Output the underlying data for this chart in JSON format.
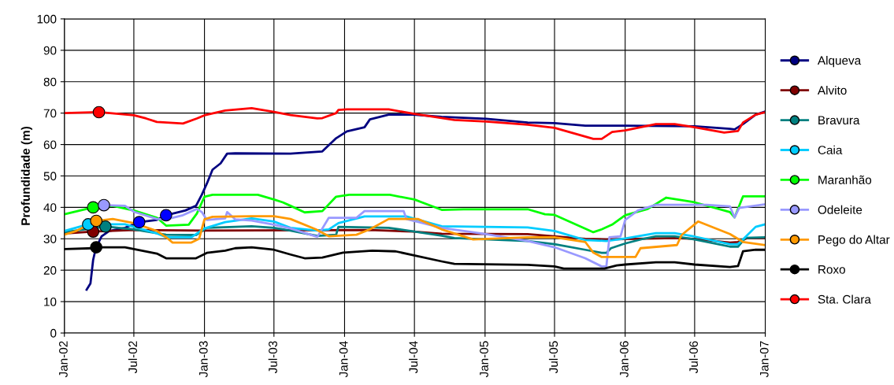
{
  "chart_data": {
    "type": "line",
    "ylabel": "Profundidade (m)",
    "ylim": [
      0,
      100
    ],
    "yticks": [
      0,
      10,
      20,
      30,
      40,
      50,
      60,
      70,
      80,
      90,
      100
    ],
    "xlim": [
      "2002-01-01",
      "2007-01-01"
    ],
    "xticks": [
      {
        "value": "2002-01-01",
        "label": "Jan-02"
      },
      {
        "value": "2002-07-01",
        "label": "Jul-02"
      },
      {
        "value": "2003-01-01",
        "label": "Jan-03"
      },
      {
        "value": "2003-07-01",
        "label": "Jul-03"
      },
      {
        "value": "2004-01-01",
        "label": "Jan-04"
      },
      {
        "value": "2004-07-01",
        "label": "Jul-04"
      },
      {
        "value": "2005-01-01",
        "label": "Jan-05"
      },
      {
        "value": "2005-07-01",
        "label": "Jul-05"
      },
      {
        "value": "2006-01-01",
        "label": "Jan-06"
      },
      {
        "value": "2006-07-01",
        "label": "Jul-06"
      },
      {
        "value": "2007-01-01",
        "label": "Jan-07"
      }
    ],
    "grid": true,
    "legend": "right",
    "marker": "none",
    "line_style": "solid",
    "series": [
      {
        "name": "Alqueva",
        "color": "#000080",
        "x": [
          "2002-02-28",
          "2002-03-10",
          "2002-03-17",
          "2002-03-24",
          "2002-04-08",
          "2002-04-28",
          "2002-06-08",
          "2002-07-15",
          "2002-08-30",
          "2002-09-23",
          "2002-11-12",
          "2002-12-10",
          "2002-12-25",
          "2003-01-07",
          "2003-01-22",
          "2003-02-12",
          "2003-03-01",
          "2003-03-22",
          "2003-08-13",
          "2003-11-04",
          "2003-12-10",
          "2004-01-07",
          "2004-02-22",
          "2004-03-07",
          "2004-04-25",
          "2004-06-28",
          "2004-09-10",
          "2005-01-04",
          "2005-04-22",
          "2005-07-01",
          "2005-09-19",
          "2006-01-01",
          "2006-07-01",
          "2006-10-01",
          "2006-10-13",
          "2006-11-04",
          "2006-12-07",
          "2007-01-01"
        ],
        "values": [
          13.8,
          15.8,
          23.3,
          27,
          30.8,
          32.5,
          33.5,
          35.3,
          36,
          37.5,
          39,
          40.5,
          44,
          47.5,
          52,
          54,
          57.1,
          57.2,
          57.1,
          57.8,
          62,
          64.2,
          65.5,
          68,
          69.5,
          69.5,
          68.8,
          68.2,
          67,
          66.8,
          66,
          66,
          65.8,
          65,
          64.8,
          66.5,
          69.5,
          70.5
        ]
      },
      {
        "name": "Alvito",
        "color": "#800000",
        "x": [
          "2002-01-01",
          "2002-03-17",
          "2002-07-01",
          "2003-01-01",
          "2004-03-07",
          "2004-06-28",
          "2004-09-10",
          "2005-04-22",
          "2005-09-19",
          "2005-11-13",
          "2006-05-10",
          "2006-07-01",
          "2006-10-01",
          "2006-10-22",
          "2006-11-15",
          "2007-01-01"
        ],
        "values": [
          31.7,
          32.3,
          32.8,
          32.6,
          32.8,
          32.3,
          31.6,
          31.5,
          30,
          29.8,
          30.2,
          30,
          28.8,
          29,
          30.2,
          30.2
        ]
      },
      {
        "name": "Bravura",
        "color": "#008080",
        "x": [
          "2002-01-01",
          "2002-04-18",
          "2002-07-01",
          "2002-09-23",
          "2002-12-10",
          "2003-01-07",
          "2003-03-22",
          "2003-05-04",
          "2003-07-01",
          "2003-08-13",
          "2003-10-22",
          "2003-12-10",
          "2003-12-16",
          "2004-04-25",
          "2004-09-10",
          "2004-10-13",
          "2005-04-22",
          "2005-07-01",
          "2005-09-19",
          "2005-11-01",
          "2005-11-13",
          "2005-11-25",
          "2006-01-01",
          "2006-02-18",
          "2006-03-22",
          "2006-05-10",
          "2006-07-01",
          "2006-10-01",
          "2006-10-22",
          "2006-11-10",
          "2007-01-01"
        ],
        "values": [
          32.1,
          33.9,
          33,
          31.3,
          31.2,
          33.5,
          33.8,
          34,
          33.5,
          32.6,
          30.9,
          31.3,
          33.8,
          33.5,
          31,
          30.2,
          29.3,
          28.3,
          26.5,
          25.5,
          25.5,
          27,
          28.5,
          30,
          30.8,
          30.8,
          29.8,
          27.5,
          27.5,
          30.3,
          30.5
        ]
      },
      {
        "name": "Caia",
        "color": "#00ccff",
        "x": [
          "2002-01-01",
          "2002-03-04",
          "2002-06-08",
          "2002-08-30",
          "2002-09-23",
          "2002-11-28",
          "2003-01-01",
          "2003-02-24",
          "2003-05-04",
          "2003-07-01",
          "2003-08-13",
          "2003-10-22",
          "2003-11-21",
          "2003-12-16",
          "2004-02-22",
          "2004-06-10",
          "2004-09-10",
          "2005-04-22",
          "2005-07-01",
          "2005-09-19",
          "2005-11-13",
          "2006-01-01",
          "2006-03-22",
          "2006-05-10",
          "2006-07-01",
          "2006-10-01",
          "2006-10-22",
          "2006-11-04",
          "2006-12-07",
          "2007-01-01"
        ],
        "values": [
          32.5,
          34.6,
          34.6,
          31.7,
          30.5,
          30.5,
          33.3,
          35.3,
          36.5,
          35.5,
          33.5,
          32.6,
          33,
          35,
          37.1,
          37.1,
          34,
          33.6,
          32.5,
          29.6,
          29.3,
          30.1,
          31.8,
          31.8,
          30.7,
          28.3,
          28.3,
          29.8,
          33.8,
          34.6
        ]
      },
      {
        "name": "Maranhão",
        "color": "#00ff00",
        "x": [
          "2002-01-01",
          "2002-03-17",
          "2002-05-07",
          "2002-07-01",
          "2002-08-30",
          "2002-09-23",
          "2002-11-21",
          "2002-12-12",
          "2003-01-01",
          "2003-01-22",
          "2003-05-20",
          "2003-07-01",
          "2003-07-24",
          "2003-08-13",
          "2003-09-19",
          "2003-11-04",
          "2003-12-10",
          "2004-01-13",
          "2004-04-28",
          "2004-07-01",
          "2004-09-10",
          "2004-11-06",
          "2005-04-22",
          "2005-06-06",
          "2005-07-01",
          "2005-10-10",
          "2005-11-01",
          "2005-11-28",
          "2006-01-01",
          "2006-03-01",
          "2006-04-18",
          "2006-07-01",
          "2006-10-01",
          "2006-10-13",
          "2006-11-04",
          "2007-01-01"
        ],
        "values": [
          37.8,
          40,
          40.5,
          39,
          36.7,
          34.2,
          34.5,
          38,
          43.4,
          44,
          44,
          42.5,
          41.6,
          40.5,
          38.4,
          38.8,
          43.4,
          44,
          44,
          42.5,
          39.2,
          39.4,
          39.4,
          37.8,
          37.6,
          32.1,
          33,
          34.5,
          37.5,
          39.5,
          43.1,
          41.6,
          38.5,
          36.8,
          43.5,
          43.5
        ]
      },
      {
        "name": "Odeleite",
        "color": "#9999ff",
        "x": [
          "2002-04-14",
          "2002-06-08",
          "2002-07-01",
          "2002-08-30",
          "2002-09-23",
          "2002-11-06",
          "2002-12-12",
          "2002-12-25",
          "2003-01-07",
          "2003-02-24",
          "2003-03-01",
          "2003-03-22",
          "2003-05-04",
          "2003-07-01",
          "2003-08-13",
          "2003-10-22",
          "2003-11-21",
          "2004-02-01",
          "2004-02-22",
          "2004-06-03",
          "2004-06-10",
          "2004-09-10",
          "2005-01-04",
          "2005-04-22",
          "2005-07-01",
          "2005-09-19",
          "2005-11-01",
          "2005-11-13",
          "2005-11-21",
          "2005-12-20",
          "2006-01-01",
          "2006-02-03",
          "2006-03-22",
          "2006-08-01",
          "2006-10-01",
          "2006-10-13",
          "2006-10-25",
          "2007-01-01"
        ],
        "values": [
          40.7,
          40.5,
          38.6,
          36.3,
          36.2,
          37.5,
          39.5,
          38.5,
          36,
          36.5,
          38.5,
          36.2,
          35.8,
          34.5,
          33.3,
          30.6,
          36.7,
          36.7,
          38.8,
          38.8,
          36.3,
          33.5,
          31.5,
          29.3,
          27.3,
          23.8,
          21.2,
          21.2,
          30.5,
          30.8,
          36,
          39,
          40.8,
          40.8,
          40.3,
          36.8,
          39.8,
          41
        ]
      },
      {
        "name": "Pego do Altar",
        "color": "#ff9900",
        "x": [
          "2002-01-01",
          "2002-02-01",
          "2002-03-25",
          "2002-05-07",
          "2002-07-01",
          "2002-08-30",
          "2002-09-23",
          "2002-10-10",
          "2002-11-28",
          "2002-12-18",
          "2003-01-01",
          "2003-01-22",
          "2003-05-04",
          "2003-07-01",
          "2003-08-13",
          "2003-10-18",
          "2003-11-21",
          "2004-02-01",
          "2004-03-07",
          "2004-04-25",
          "2004-07-10",
          "2004-09-10",
          "2004-12-01",
          "2005-04-22",
          "2005-07-01",
          "2005-09-19",
          "2005-10-10",
          "2005-11-01",
          "2006-01-28",
          "2006-02-10",
          "2006-05-16",
          "2006-05-28",
          "2006-07-10",
          "2006-10-01",
          "2006-11-04",
          "2007-01-01"
        ],
        "values": [
          31.3,
          32.5,
          35.7,
          36.3,
          35,
          32.5,
          30.5,
          28.8,
          28.8,
          30,
          36.2,
          37,
          37.2,
          37.2,
          36.3,
          33,
          30.8,
          31.3,
          33,
          36.3,
          36.3,
          33,
          29.8,
          30.5,
          30.5,
          29,
          25.6,
          24.2,
          24.2,
          27,
          28,
          31.2,
          35.5,
          31.5,
          29,
          28
        ]
      },
      {
        "name": "Roxo",
        "color": "#000000",
        "x": [
          "2002-01-01",
          "2002-03-17",
          "2002-03-25",
          "2002-06-08",
          "2002-08-30",
          "2002-09-23",
          "2002-12-10",
          "2003-01-07",
          "2003-02-24",
          "2003-03-22",
          "2003-05-04",
          "2003-07-01",
          "2003-08-13",
          "2003-09-19",
          "2003-11-04",
          "2003-12-28",
          "2004-03-13",
          "2004-05-13",
          "2004-09-10",
          "2004-10-13",
          "2005-04-22",
          "2005-07-01",
          "2005-07-25",
          "2005-11-08",
          "2005-12-10",
          "2006-01-01",
          "2006-03-22",
          "2006-05-10",
          "2006-07-01",
          "2006-10-01",
          "2006-10-22",
          "2006-11-04",
          "2006-12-07",
          "2007-01-01"
        ],
        "values": [
          26.7,
          27,
          27.3,
          27.3,
          25.3,
          23.8,
          23.8,
          25.5,
          26.2,
          27,
          27.3,
          26.5,
          25,
          23.8,
          24,
          25.6,
          26.2,
          26,
          22.8,
          22,
          21.7,
          21.2,
          20.5,
          20.5,
          21.5,
          21.8,
          22.5,
          22.5,
          21.8,
          21,
          21.3,
          26,
          26.5,
          26.5
        ]
      },
      {
        "name": "Sta. Clara",
        "color": "#ff0000",
        "x": [
          "2002-01-01",
          "2002-04-01",
          "2002-07-01",
          "2002-08-02",
          "2002-08-30",
          "2002-11-06",
          "2002-12-12",
          "2003-01-01",
          "2003-02-24",
          "2003-05-04",
          "2003-07-01",
          "2003-08-13",
          "2003-10-22",
          "2003-11-04",
          "2003-12-10",
          "2003-12-16",
          "2004-01-07",
          "2004-04-25",
          "2004-06-28",
          "2004-10-13",
          "2005-01-04",
          "2005-04-22",
          "2005-07-01",
          "2005-10-10",
          "2005-11-01",
          "2005-11-28",
          "2006-01-01",
          "2006-03-22",
          "2006-05-10",
          "2006-07-01",
          "2006-09-16",
          "2006-10-22",
          "2006-11-04",
          "2006-12-07",
          "2007-01-01"
        ],
        "values": [
          70,
          70.3,
          69.3,
          68.3,
          67.2,
          66.7,
          68.3,
          69.3,
          70.8,
          71.6,
          70.4,
          69.4,
          68.3,
          68.4,
          70,
          71,
          71.2,
          71.2,
          69.8,
          67.8,
          67.3,
          66.3,
          65.3,
          61.8,
          61.8,
          64,
          64.5,
          66.5,
          66.5,
          65.5,
          63.8,
          64.3,
          67,
          69.5,
          70.3
        ]
      },
      {
        "type": "scatter",
        "marker": "circle",
        "x": [
          "2002-07-15",
          "2002-09-23",
          "2002-03-17",
          "2002-04-18",
          "2002-03-04",
          "2002-03-17",
          "2002-04-14",
          "2002-03-25",
          "2002-03-25",
          "2002-04-01"
        ],
        "values": [
          35.3,
          37.5,
          32.3,
          33.9,
          34.6,
          40,
          40.7,
          35.7,
          27.3,
          70.3
        ],
        "colors": [
          "#0000ff",
          "#0000ff",
          "#800000",
          "#008080",
          "#00ccff",
          "#00ff00",
          "#9999ff",
          "#ff9900",
          "#000000",
          "#ff0000"
        ]
      }
    ]
  }
}
